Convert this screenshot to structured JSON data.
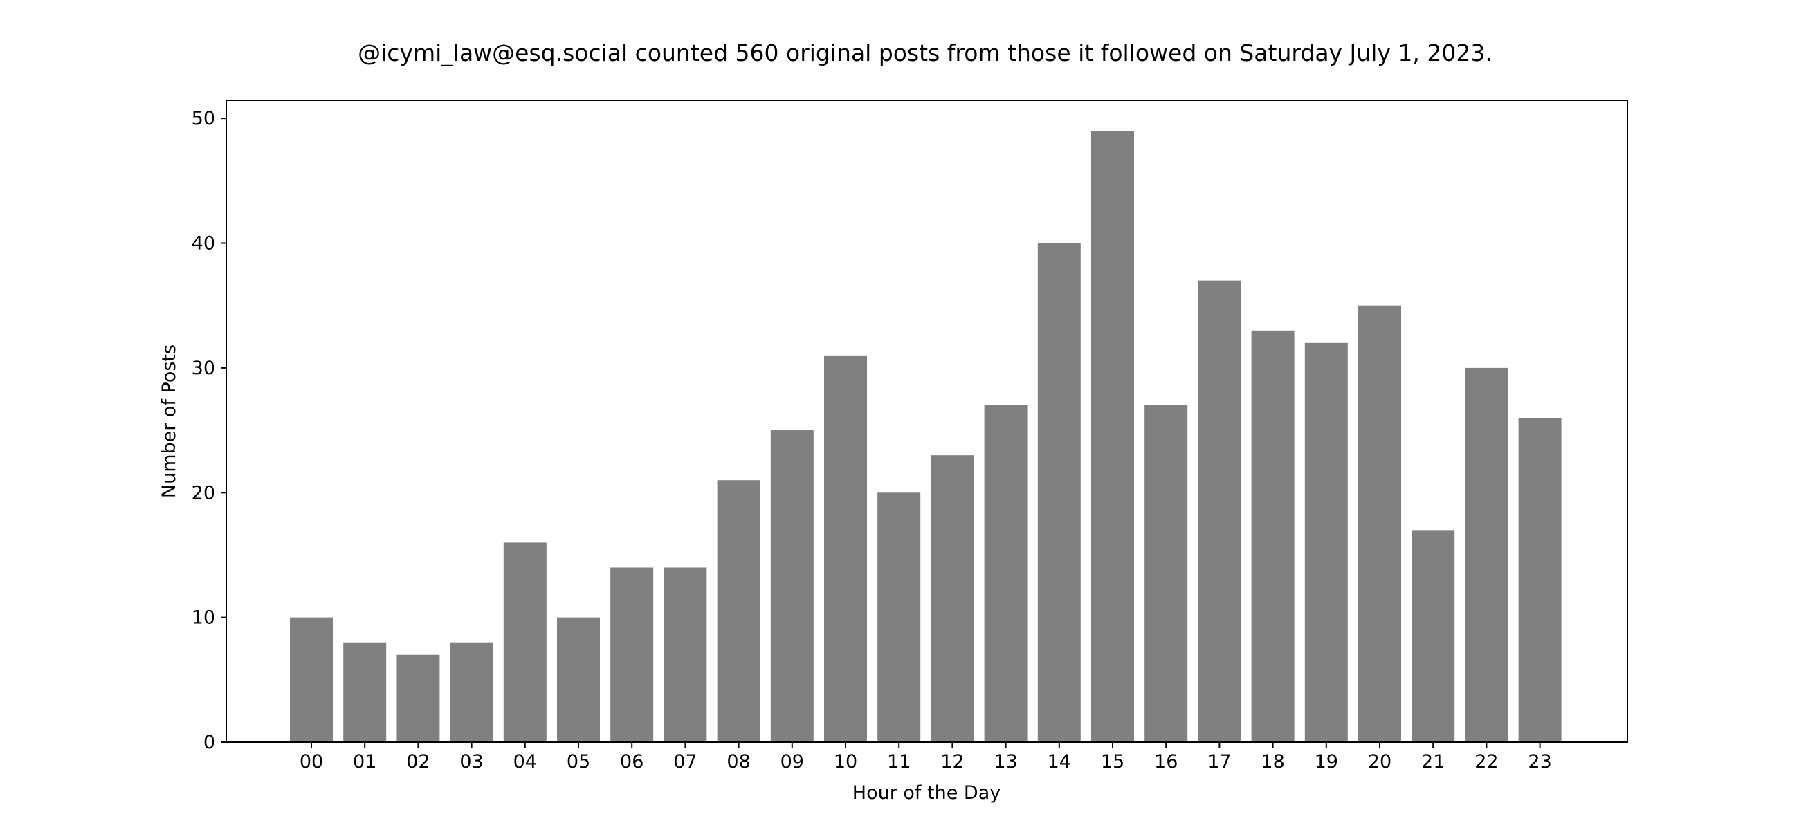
{
  "chart_data": {
    "type": "bar",
    "title": "@icymi_law@esq.social counted 560 original posts from those it followed on Saturday July 1, 2023.",
    "xlabel": "Hour of the Day",
    "ylabel": "Number of Posts",
    "categories": [
      "00",
      "01",
      "02",
      "03",
      "04",
      "05",
      "06",
      "07",
      "08",
      "09",
      "10",
      "11",
      "12",
      "13",
      "14",
      "15",
      "16",
      "17",
      "18",
      "19",
      "20",
      "21",
      "22",
      "23"
    ],
    "values": [
      10,
      8,
      7,
      8,
      16,
      10,
      14,
      14,
      21,
      25,
      31,
      20,
      23,
      27,
      40,
      49,
      27,
      37,
      33,
      32,
      35,
      17,
      30,
      26
    ],
    "ylim": [
      0,
      51.45
    ],
    "yticks": [
      0,
      10,
      20,
      30,
      40,
      50
    ],
    "grid": false,
    "legend": "none",
    "bar_color": "#808080"
  }
}
